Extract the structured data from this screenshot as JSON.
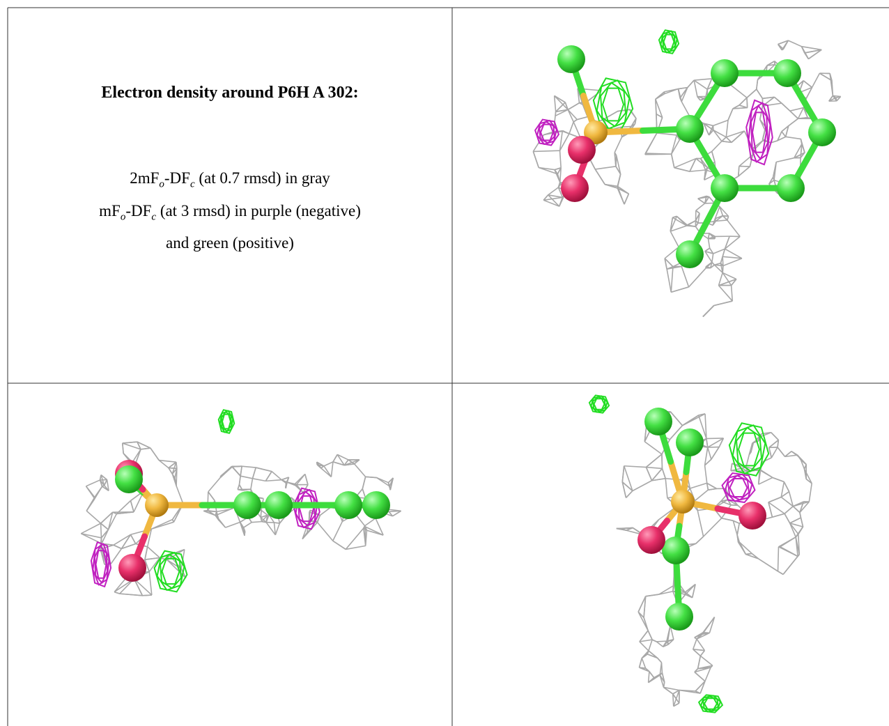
{
  "caption": {
    "title": "Electron density around P6H A 302:",
    "lines": [
      [
        {
          "text": "2mF"
        },
        {
          "sub": "o"
        },
        {
          "text": "-DF"
        },
        {
          "sub": "c"
        },
        {
          "text": " (at 0.7 rmsd) in gray"
        }
      ],
      [
        {
          "text": "mF"
        },
        {
          "sub": "o"
        },
        {
          "text": "-DF"
        },
        {
          "sub": "c"
        },
        {
          "text": " (at 3 rmsd) in purple (negative)"
        }
      ],
      [
        {
          "text": "and green (positive)"
        }
      ]
    ]
  }
}
